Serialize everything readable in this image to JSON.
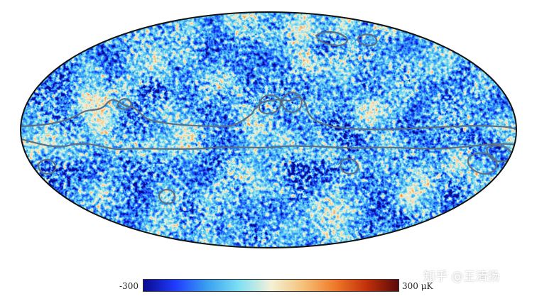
{
  "colorbar": {
    "min_label": "-300",
    "max_label": "300 μK",
    "stops": [
      "#0a0a8c",
      "#1f3cff",
      "#3aa0f0",
      "#7fe0f4",
      "#f4f1d8",
      "#f5c27a",
      "#f07a2a",
      "#c2300a",
      "#5a0a0a"
    ]
  },
  "watermark": {
    "text": "知乎 @王清扬"
  },
  "colors": {
    "outline": "#111111",
    "mask_contour": "#5b6f86"
  }
}
